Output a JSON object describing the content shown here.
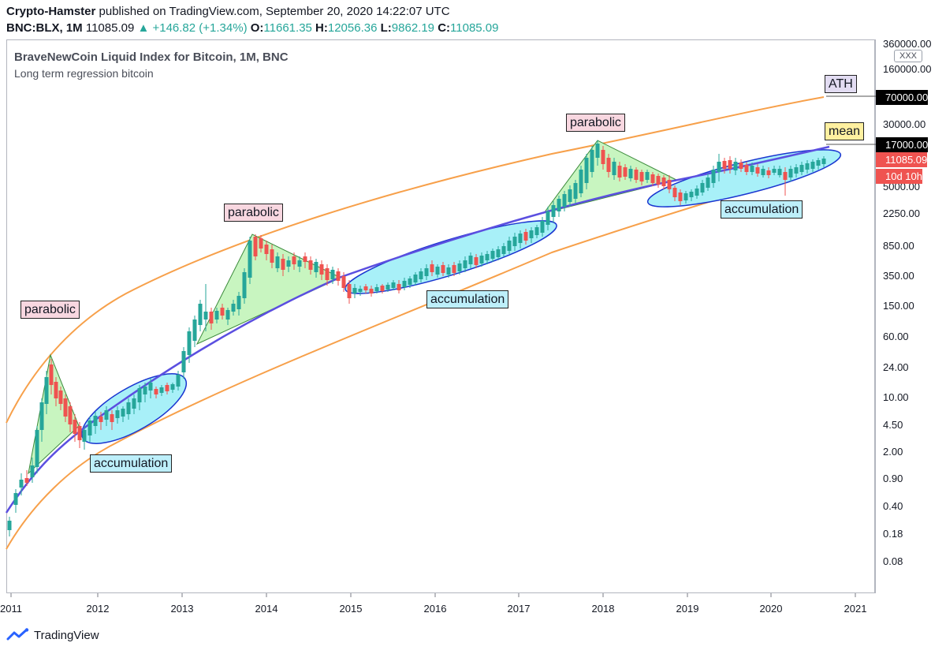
{
  "header": {
    "author": "Crypto-Hamster",
    "published": "published on TradingView.com, September 20, 2020 14:22:07 UTC",
    "symbol": "BNC:BLX, 1M",
    "last": "11085.09",
    "change": "▲ +146.82 (+1.34%)",
    "o_label": "O:",
    "o_value": "11661.35",
    "h_label": "H:",
    "h_value": "12056.36",
    "l_label": "L:",
    "l_value": "9862.19",
    "c_label": "C:",
    "c_value": "11085.09"
  },
  "chart_title": "BraveNewCoin Liquid Index for Bitcoin, 1M, BNC",
  "chart_subtitle": "Long term regression bitcoin",
  "scale_badge": "XXX",
  "y_ticks": [
    "360000.00",
    "160000.00",
    "30000.00",
    "5000.00",
    "2250.00",
    "850.00",
    "350.00",
    "150.00",
    "60.00",
    "24.00",
    "10.00",
    "4.50",
    "2.00",
    "0.90",
    "0.40",
    "0.18",
    "0.08"
  ],
  "price_labels": {
    "ath_price": "70000.00",
    "mean_price": "17000.00",
    "last_price": "11085.09",
    "countdown": "10d 10h"
  },
  "x_ticks": [
    "2011",
    "2012",
    "2013",
    "2014",
    "2015",
    "2016",
    "2017",
    "2018",
    "2019",
    "2020",
    "2021"
  ],
  "annotations": {
    "parabolic_1": "parabolic",
    "parabolic_2": "parabolic",
    "parabolic_3": "parabolic",
    "accumulation_1": "accumulation",
    "accumulation_2": "accumulation",
    "accumulation_3": "accumulation",
    "ath": "ATH",
    "mean": "mean"
  },
  "footer": {
    "brand": "TradingView"
  },
  "colors": {
    "up": "#26a69a",
    "down": "#ef5350",
    "band": "#f7a04a",
    "mean_line": "#5b4fe0",
    "triangle_fill": "#c8f5c0",
    "ellipse_fill": "#a8f0f8"
  },
  "chart_data": {
    "type": "candlestick",
    "title": "BraveNewCoin Liquid Index for Bitcoin, 1M, BNC",
    "subtitle": "Long term regression bitcoin",
    "scale": "log",
    "ylim": [
      0.05,
      500000
    ],
    "x_range": [
      "2011-01",
      "2021-03"
    ],
    "series": [
      {
        "name": "BNC:BLX monthly (approx)",
        "x": [
          "2011-01",
          "2011-04",
          "2011-06",
          "2011-09",
          "2011-11",
          "2012-06",
          "2012-12",
          "2013-04",
          "2013-11",
          "2014-06",
          "2014-12",
          "2015-08",
          "2016-06",
          "2017-03",
          "2017-12",
          "2018-06",
          "2018-12",
          "2019-06",
          "2019-12",
          "2020-03",
          "2020-09"
        ],
        "y": [
          0.3,
          0.8,
          15,
          5,
          3,
          6.5,
          13,
          120,
          1000,
          600,
          320,
          230,
          650,
          1100,
          14000,
          6500,
          3700,
          11000,
          7200,
          6400,
          11085.09
        ]
      }
    ],
    "regression": {
      "ath_line_last": 70000,
      "mean_line_last": 17000
    },
    "legend": "none",
    "grid": false
  }
}
